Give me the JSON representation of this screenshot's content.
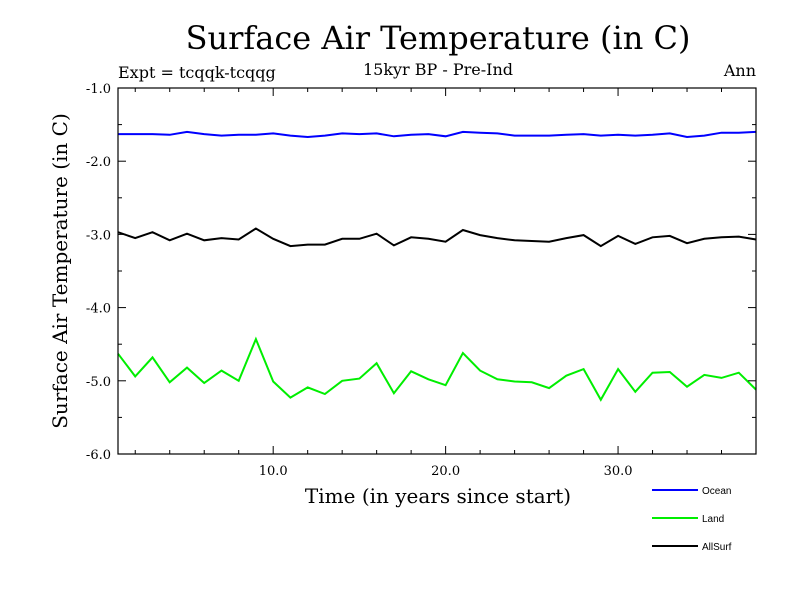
{
  "chart_data": {
    "type": "line",
    "title": "Surface Air Temperature (in C)",
    "subtitle": "15kyr BP - Pre-Ind",
    "expt_label": "Expt = tcqqk-tcqqg",
    "period_label": "Ann",
    "xlabel": "Time (in years since start)",
    "ylabel": "Surface Air Temperature (in C)",
    "xlim": [
      1,
      38
    ],
    "ylim": [
      -6.0,
      -1.0
    ],
    "x_ticks": [
      10,
      20,
      30
    ],
    "x_tick_labels": [
      "10.0",
      "20.0",
      "30.0"
    ],
    "y_ticks": [
      -1,
      -2,
      -3,
      -4,
      -5,
      -6
    ],
    "y_tick_labels": [
      "-1.0",
      "-2.0",
      "-3.0",
      "-4.0",
      "-5.0",
      "-6.0"
    ],
    "x": [
      1,
      2,
      3,
      4,
      5,
      6,
      7,
      8,
      9,
      10,
      11,
      12,
      13,
      14,
      15,
      16,
      17,
      18,
      19,
      20,
      21,
      22,
      23,
      24,
      25,
      26,
      27,
      28,
      29,
      30,
      31,
      32,
      33,
      34,
      35,
      36,
      37,
      38
    ],
    "series": [
      {
        "name": "Ocean",
        "color": "#0000ff",
        "values": [
          -1.63,
          -1.63,
          -1.63,
          -1.64,
          -1.6,
          -1.63,
          -1.65,
          -1.64,
          -1.64,
          -1.62,
          -1.65,
          -1.67,
          -1.65,
          -1.62,
          -1.63,
          -1.62,
          -1.66,
          -1.64,
          -1.63,
          -1.66,
          -1.6,
          -1.61,
          -1.62,
          -1.65,
          -1.65,
          -1.65,
          -1.64,
          -1.63,
          -1.65,
          -1.64,
          -1.65,
          -1.64,
          -1.62,
          -1.67,
          -1.65,
          -1.61,
          -1.61,
          -1.6
        ]
      },
      {
        "name": "Land",
        "color": "#00ee00",
        "values": [
          -4.63,
          -4.94,
          -4.68,
          -5.02,
          -4.82,
          -5.03,
          -4.86,
          -5.0,
          -4.43,
          -5.01,
          -5.23,
          -5.09,
          -5.18,
          -5.0,
          -4.97,
          -4.76,
          -5.17,
          -4.87,
          -4.98,
          -5.06,
          -4.62,
          -4.86,
          -4.98,
          -5.01,
          -5.02,
          -5.1,
          -4.93,
          -4.84,
          -5.26,
          -4.84,
          -5.15,
          -4.89,
          -4.88,
          -5.08,
          -4.92,
          -4.96,
          -4.89,
          -5.12
        ]
      },
      {
        "name": "AllSurf",
        "color": "#000000",
        "values": [
          -2.97,
          -3.05,
          -2.97,
          -3.08,
          -2.99,
          -3.08,
          -3.05,
          -3.07,
          -2.92,
          -3.06,
          -3.16,
          -3.14,
          -3.14,
          -3.06,
          -3.06,
          -2.99,
          -3.15,
          -3.04,
          -3.06,
          -3.1,
          -2.94,
          -3.01,
          -3.05,
          -3.08,
          -3.09,
          -3.1,
          -3.05,
          -3.01,
          -3.16,
          -3.02,
          -3.13,
          -3.04,
          -3.02,
          -3.12,
          -3.06,
          -3.04,
          -3.03,
          -3.07
        ]
      }
    ],
    "legend_position": "bottom-right"
  }
}
